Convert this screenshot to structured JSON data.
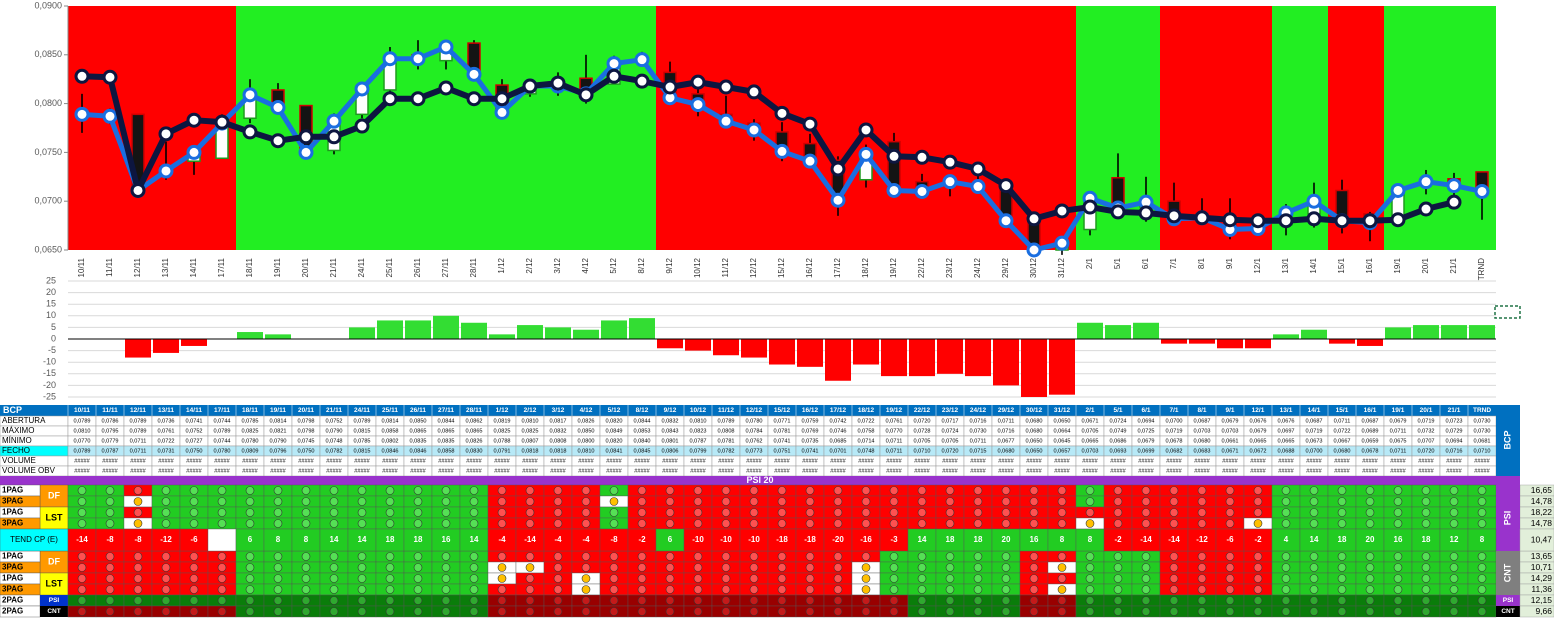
{
  "chart_data": [
    {
      "type": "candlestick",
      "categories": [
        "10/11",
        "11/11",
        "12/11",
        "13/11",
        "14/11",
        "17/11",
        "18/11",
        "19/11",
        "20/11",
        "21/11",
        "24/11",
        "25/11",
        "26/11",
        "27/11",
        "28/11",
        "1/12",
        "2/12",
        "3/12",
        "4/12",
        "5/12",
        "8/12",
        "9/12",
        "10/12",
        "11/12",
        "12/12",
        "15/12",
        "16/12",
        "17/12",
        "18/12",
        "19/12",
        "22/12",
        "23/12",
        "24/12",
        "29/12",
        "30/12",
        "31/12",
        "2/1",
        "5/1",
        "6/1",
        "7/1",
        "8/1",
        "9/1",
        "12/1",
        "13/1",
        "14/1",
        "15/1",
        "16/1",
        "19/1",
        "20/1",
        "21/1",
        "TRND"
      ],
      "ylim": [
        0.065,
        0.09
      ],
      "yticks": [
        {
          "value": 0.065,
          "label": "0,0650"
        },
        {
          "value": 0.07,
          "label": "0,0700"
        },
        {
          "value": 0.075,
          "label": "0,0750"
        },
        {
          "value": 0.08,
          "label": "0,0800"
        },
        {
          "value": 0.085,
          "label": "0,0850"
        },
        {
          "value": 0.09,
          "label": "0,0900"
        }
      ],
      "open": [
        0.0789,
        0.0786,
        0.0789,
        0.0736,
        0.0741,
        0.0744,
        0.0785,
        0.0814,
        0.0798,
        0.0752,
        0.0789,
        0.0814,
        0.085,
        0.0844,
        0.0862,
        0.0819,
        0.081,
        0.0817,
        0.0826,
        0.082,
        0.0844,
        0.0832,
        0.081,
        0.0789,
        0.078,
        0.0771,
        0.0759,
        0.0742,
        0.0722,
        0.0761,
        0.072,
        0.0717,
        0.0716,
        0.0711,
        0.068,
        0.065,
        0.0671,
        0.0724,
        0.0694,
        0.07,
        0.0687,
        0.0679,
        0.0676,
        0.0676,
        0.0687,
        0.0711,
        0.0687,
        0.0679,
        0.0719,
        0.0723,
        0.073
      ],
      "high": [
        0.081,
        0.0795,
        0.0789,
        0.0761,
        0.0752,
        0.0789,
        0.0825,
        0.0821,
        0.0798,
        0.079,
        0.0815,
        0.0858,
        0.0865,
        0.0865,
        0.0865,
        0.0825,
        0.0825,
        0.0832,
        0.085,
        0.0849,
        0.0853,
        0.0843,
        0.0823,
        0.0808,
        0.0784,
        0.0781,
        0.0769,
        0.0746,
        0.0758,
        0.077,
        0.0728,
        0.0724,
        0.073,
        0.0716,
        0.068,
        0.0664,
        0.0705,
        0.0749,
        0.0725,
        0.0719,
        0.0703,
        0.0703,
        0.0679,
        0.0697,
        0.0719,
        0.0722,
        0.0689,
        0.0711,
        0.0732,
        0.0729,
        0.073
      ],
      "low": [
        0.077,
        0.0779,
        0.0711,
        0.0722,
        0.0727,
        0.0744,
        0.078,
        0.079,
        0.0745,
        0.0748,
        0.0785,
        0.0802,
        0.0835,
        0.0835,
        0.0826,
        0.0788,
        0.0807,
        0.0808,
        0.08,
        0.082,
        0.084,
        0.0801,
        0.0787,
        0.0781,
        0.0762,
        0.0741,
        0.0735,
        0.0685,
        0.0714,
        0.0711,
        0.0705,
        0.0705,
        0.0711,
        0.0677,
        0.065,
        0.0645,
        0.0665,
        0.0686,
        0.0679,
        0.0678,
        0.068,
        0.0661,
        0.0665,
        0.0665,
        0.0673,
        0.0667,
        0.0659,
        0.0675,
        0.0707,
        0.0694,
        0.0681
      ],
      "close": [
        0.0789,
        0.0787,
        0.0711,
        0.0731,
        0.075,
        0.078,
        0.0809,
        0.0796,
        0.075,
        0.0782,
        0.0815,
        0.0846,
        0.0846,
        0.0858,
        0.083,
        0.0791,
        0.0818,
        0.0818,
        0.081,
        0.0841,
        0.0845,
        0.0806,
        0.0799,
        0.0782,
        0.0773,
        0.0751,
        0.0741,
        0.0701,
        0.0748,
        0.0711,
        0.071,
        0.072,
        0.0715,
        0.068,
        0.065,
        0.0657,
        0.0703,
        0.0693,
        0.0699,
        0.0682,
        0.0683,
        0.0671,
        0.0672,
        0.0688,
        0.07,
        0.068,
        0.0678,
        0.0711,
        0.072,
        0.0716,
        0.071
      ],
      "series": [
        {
          "color": "#0d1640",
          "values": [
            0.0828,
            0.0827,
            0.0711,
            0.0769,
            0.0783,
            0.0781,
            0.0771,
            0.0762,
            0.0766,
            0.0766,
            0.0777,
            0.0805,
            0.0805,
            0.0816,
            0.0805,
            0.0805,
            0.0818,
            0.0821,
            0.0809,
            0.0828,
            0.0823,
            0.0817,
            0.0822,
            0.0817,
            0.0812,
            0.079,
            0.0779,
            0.0733,
            0.0773,
            0.0746,
            0.0745,
            0.074,
            0.0733,
            0.0716,
            0.0682,
            0.069,
            0.0694,
            0.0689,
            0.0688,
            0.0685,
            0.0683,
            0.0681,
            0.068,
            0.068,
            0.0682,
            0.068,
            0.068,
            0.0681,
            0.0692,
            0.0699,
            null
          ]
        }
      ],
      "close_color": "#1a6ee0",
      "up_color": "#ffffff",
      "down_color": "#141414",
      "up_edge": "#1f9a1f",
      "down_edge": "#d00000",
      "trend_fills": "RRRRRRGGGGGGGGGGGGGGGRRRRRRRRRRRRRRRGGGRRRRGGRRGGGG",
      "fill_colors": {
        "R": "#ff0000",
        "G": "#22ee22"
      }
    },
    {
      "type": "bar",
      "values": [
        0,
        0,
        -8,
        -6,
        -3,
        0,
        3,
        2,
        0,
        0,
        5,
        8,
        8,
        10,
        7,
        2,
        6,
        5,
        4,
        8,
        9,
        -4,
        -5,
        -7,
        -8,
        -11,
        -12,
        -18,
        -11,
        -16,
        -16,
        -15,
        -16,
        -20,
        -25,
        -24,
        7,
        6,
        7,
        -2,
        -2,
        -4,
        -4,
        2,
        4,
        -2,
        -3,
        5,
        6,
        6,
        6
      ],
      "ylim": [
        -25,
        25
      ],
      "yticks": [
        -25,
        -20,
        -15,
        -10,
        -5,
        0,
        5,
        10,
        15,
        20,
        25
      ],
      "grid": true,
      "up_color": "#33dd33",
      "down_color": "#ff0000"
    }
  ],
  "table": {
    "title": "BCP",
    "side_label": "BCP",
    "rows": [
      {
        "label": "ABERTURA",
        "cells": [
          "0,0789",
          "0,0786",
          "0,0789",
          "0,0736",
          "0,0741",
          "0,0744",
          "0,0785",
          "0,0814",
          "0,0798",
          "0,0752",
          "0,0789",
          "0,0814",
          "0,0850",
          "0,0844",
          "0,0862",
          "0,0819",
          "0,0810",
          "0,0817",
          "0,0826",
          "0,0820",
          "0,0844",
          "0,0832",
          "0,0810",
          "0,0789",
          "0,0780",
          "0,0771",
          "0,0759",
          "0,0742",
          "0,0722",
          "0,0761",
          "0,0720",
          "0,0717",
          "0,0716",
          "0,0711",
          "0,0680",
          "0,0650",
          "0,0671",
          "0,0724",
          "0,0694",
          "0,0700",
          "0,0687",
          "0,0679",
          "0,0676",
          "0,0676",
          "0,0687",
          "0,0711",
          "0,0687",
          "0,0679",
          "0,0719",
          "0,0723",
          "0,0730"
        ]
      },
      {
        "label": "MÁXIMO",
        "cells": [
          "0,0810",
          "0,0795",
          "0,0789",
          "0,0761",
          "0,0752",
          "0,0789",
          "0,0825",
          "0,0821",
          "0,0798",
          "0,0790",
          "0,0815",
          "0,0858",
          "0,0865",
          "0,0865",
          "0,0865",
          "0,0825",
          "0,0825",
          "0,0832",
          "0,0850",
          "0,0849",
          "0,0853",
          "0,0843",
          "0,0823",
          "0,0808",
          "0,0784",
          "0,0781",
          "0,0769",
          "0,0746",
          "0,0758",
          "0,0770",
          "0,0728",
          "0,0724",
          "0,0730",
          "0,0716",
          "0,0680",
          "0,0664",
          "0,0705",
          "0,0749",
          "0,0725",
          "0,0719",
          "0,0703",
          "0,0703",
          "0,0679",
          "0,0697",
          "0,0719",
          "0,0722",
          "0,0689",
          "0,0711",
          "0,0732",
          "0,0729",
          "0,0730"
        ]
      },
      {
        "label": "MÍNIMO",
        "cells": [
          "0,0770",
          "0,0779",
          "0,0711",
          "0,0722",
          "0,0727",
          "0,0744",
          "0,0780",
          "0,0790",
          "0,0745",
          "0,0748",
          "0,0785",
          "0,0802",
          "0,0835",
          "0,0835",
          "0,0826",
          "0,0788",
          "0,0807",
          "0,0808",
          "0,0800",
          "0,0820",
          "0,0840",
          "0,0801",
          "0,0787",
          "0,0781",
          "0,0762",
          "0,0741",
          "0,0735",
          "0,0685",
          "0,0714",
          "0,0711",
          "0,0705",
          "0,0705",
          "0,0711",
          "0,0677",
          "0,0650",
          "0,0645",
          "0,0665",
          "0,0686",
          "0,0679",
          "0,0678",
          "0,0680",
          "0,0661",
          "0,0665",
          "0,0665",
          "0,0673",
          "0,0667",
          "0,0659",
          "0,0675",
          "0,0707",
          "0,0694",
          "0,0681"
        ]
      },
      {
        "label": "FECHO",
        "cells": [
          "0,0789",
          "0,0787",
          "0,0711",
          "0,0731",
          "0,0750",
          "0,0780",
          "0,0809",
          "0,0796",
          "0,0750",
          "0,0782",
          "0,0815",
          "0,0846",
          "0,0846",
          "0,0858",
          "0,0830",
          "0,0791",
          "0,0818",
          "0,0818",
          "0,0810",
          "0,0841",
          "0,0845",
          "0,0806",
          "0,0799",
          "0,0782",
          "0,0773",
          "0,0751",
          "0,0741",
          "0,0701",
          "0,0748",
          "0,0711",
          "0,0710",
          "0,0720",
          "0,0715",
          "0,0680",
          "0,0650",
          "0,0657",
          "0,0703",
          "0,0693",
          "0,0699",
          "0,0682",
          "0,0683",
          "0,0671",
          "0,0672",
          "0,0688",
          "0,0700",
          "0,0680",
          "0,0678",
          "0,0711",
          "0,0720",
          "0,0716",
          "0,0710"
        ]
      },
      {
        "label": "VOLUME",
        "cells": [
          "#####",
          "#####",
          "#####",
          "#####",
          "#####",
          "#####",
          "#####",
          "#####",
          "#####",
          "#####",
          "#####",
          "#####",
          "#####",
          "#####",
          "#####",
          "#####",
          "#####",
          "#####",
          "#####",
          "#####",
          "#####",
          "#####",
          "#####",
          "#####",
          "#####",
          "#####",
          "#####",
          "#####",
          "#####",
          "#####",
          "#####",
          "#####",
          "#####",
          "#####",
          "#####",
          "#####",
          "#####",
          "#####",
          "#####",
          "#####",
          "#####",
          "#####",
          "#####",
          "#####",
          "#####",
          "#####",
          "#####",
          "#####",
          "#####",
          "#####",
          "#####"
        ]
      },
      {
        "label": "VOLUME OBV",
        "cells": [
          "#####",
          "#####",
          "#####",
          "#####",
          "#####",
          "#####",
          "#####",
          "#####",
          "#####",
          "#####",
          "#####",
          "#####",
          "#####",
          "#####",
          "#####",
          "#####",
          "#####",
          "#####",
          "#####",
          "#####",
          "#####",
          "#####",
          "#####",
          "#####",
          "#####",
          "#####",
          "#####",
          "#####",
          "#####",
          "#####",
          "#####",
          "#####",
          "#####",
          "#####",
          "#####",
          "#####",
          "#####",
          "#####",
          "#####",
          "#####",
          "#####",
          "#####",
          "#####",
          "#####",
          "#####",
          "#####",
          "#####",
          "#####",
          "#####",
          "#####",
          "#####"
        ]
      }
    ]
  },
  "signals": {
    "title": "PSI 20",
    "fill_colors": {
      "G": "#22cc22",
      "R": "#ff0000",
      "W": "#ffffff",
      "g": "#0a7d0a",
      "r": "#990000"
    },
    "dot_colors": {
      "G": "#55e055",
      "R": "#ff5050",
      "W": "#ffc000",
      "g": "#2fa82f",
      "r": "#c41a1a"
    },
    "sections": [
      {
        "side_label": "PSI",
        "groups": [
          {
            "name": "DF",
            "rows": [
              {
                "label": "1PAG",
                "fills": "GGRGGGGGGGGGGGGRRRRGRRRRRRRRRRRRRRRRGRRRRRRGGGGGGGG",
                "score": "16,65"
              },
              {
                "label": "3PAG",
                "fills": "GGWGGGGGGGGGGGGRRRRWRRRRRRRRRRRRRRRRGRRRRRRGGGGGGGG",
                "score": "14,78"
              }
            ]
          },
          {
            "name": "LST",
            "rows": [
              {
                "label": "1PAG",
                "fills": "GGRGGGGGGGGGGGGRRRRGRRRRRRRRRRRRRRRRRRRRRRRGGGGGGGG",
                "score": "18,22"
              },
              {
                "label": "3PAG",
                "fills": "GGWGGGGGGGGGGGGRRRRGRRRRRRRRRRRRRRRRWRRRRRWGGGGGGGG",
                "score": "14,78"
              }
            ]
          }
        ]
      },
      {
        "side_label": "CNT",
        "groups": [
          {
            "name": "DF",
            "rows": [
              {
                "label": "1PAG",
                "fills": "RRRRRRGGGGGGGGGRRRRRRRRRRRRRRGGGGGRRGGGRRRRGGGGGGGG",
                "score": "13,65"
              },
              {
                "label": "3PAG",
                "fills": "RRRRRRGGGGGGGGGWWRRRRRRRRRRRWGGGGGRWGGGRRRRGGGGGGGG",
                "score": "10,71"
              }
            ]
          },
          {
            "name": "LST",
            "rows": [
              {
                "label": "1PAG",
                "fills": "RRRRRRGGGGGGGGGWRRWRRRRRRRRRWGGGGGRRGGGRRRRGGGGGGGG",
                "score": "14,29"
              },
              {
                "label": "3PAG",
                "fills": "RRRRRRGGGGGGGGGRRRWRRRRRRRRRWGGGGGRWGGGRRRRGGGGGGGG",
                "score": "11,36"
              }
            ]
          }
        ]
      }
    ],
    "trend": {
      "label": "TEND CP (E)",
      "values": [
        -14,
        -8,
        -8,
        -12,
        -6,
        null,
        6,
        8,
        8,
        14,
        14,
        18,
        18,
        16,
        14,
        -4,
        -14,
        -4,
        -4,
        -8,
        -2,
        6,
        -10,
        -10,
        -10,
        -18,
        -18,
        -20,
        -16,
        -3,
        14,
        18,
        18,
        20,
        16,
        8,
        8,
        -2,
        -14,
        -14,
        -12,
        -6,
        -2,
        4,
        14,
        18,
        20,
        16,
        18,
        12,
        8
      ],
      "score": "10,47"
    },
    "totals": [
      {
        "label": "2PAG",
        "tag": "PSI",
        "fills": "gggggggggggggggrrrrrrrrrrrrrrrggggrrggggggggggggggg",
        "score": "12,15"
      },
      {
        "label": "2PAG",
        "tag": "CNT",
        "fills": "rrrrrrgggggggggrrrrrrrrrrrrrrrggggrrggggggggggggggg",
        "score": "9,66"
      }
    ]
  }
}
